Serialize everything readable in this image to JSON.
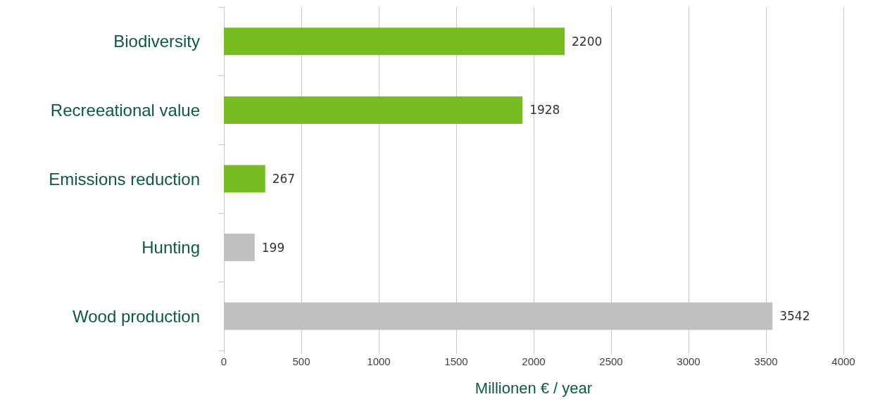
{
  "chart_data": {
    "type": "bar",
    "orientation": "horizontal",
    "categories": [
      "Biodiversity",
      "Recreeational value",
      "Emissions reduction",
      "Hunting",
      "Wood production"
    ],
    "values": [
      2200,
      1928,
      267,
      199,
      3542
    ],
    "colors": [
      "#77bd22",
      "#77bd22",
      "#77bd22",
      "#c0c0c0",
      "#c0c0c0"
    ],
    "xlabel": "Millionen € / year",
    "xlim": [
      0,
      4000
    ],
    "xticks": [
      0,
      500,
      1000,
      1500,
      2000,
      2500,
      3000,
      3500,
      4000
    ],
    "grid": "x",
    "data_labels": true
  }
}
